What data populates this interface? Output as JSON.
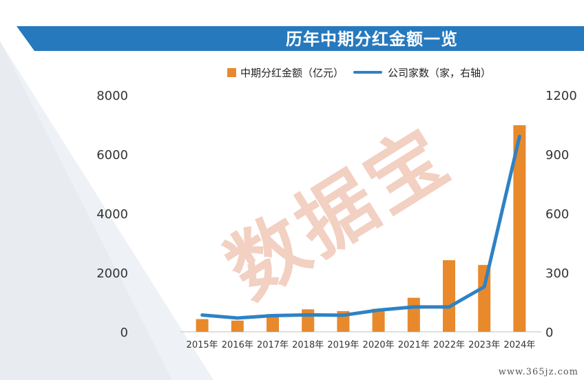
{
  "header": {
    "title": "历年中期分红金额一览"
  },
  "watermark": {
    "text": "数据宝"
  },
  "site": {
    "text": "www.365jz.com"
  },
  "colors": {
    "bar": "#E8892C",
    "line": "#2E82C4",
    "banner": "#2779BD"
  },
  "chart_data": {
    "type": "bar",
    "title": "历年中期分红金额一览",
    "categories": [
      "2015年",
      "2016年",
      "2017年",
      "2018年",
      "2019年",
      "2020年",
      "2021年",
      "2022年",
      "2023年",
      "2024年"
    ],
    "series": [
      {
        "name": "中期分红金额（亿元）",
        "type": "bar",
        "axis": "left",
        "values": [
          430,
          380,
          600,
          760,
          700,
          780,
          1150,
          2420,
          2260,
          6980
        ]
      },
      {
        "name": "公司家数（家，右轴）",
        "type": "line",
        "axis": "right",
        "values": [
          85,
          70,
          82,
          86,
          84,
          110,
          126,
          126,
          228,
          990
        ]
      }
    ],
    "y_left": {
      "min": 0,
      "max": 8000,
      "ticks": [
        "0",
        "2000",
        "4000",
        "6000",
        "8000"
      ]
    },
    "y_right": {
      "min": 0,
      "max": 1200,
      "ticks": [
        "0",
        "300",
        "600",
        "900",
        "1200"
      ]
    },
    "legend": {
      "position": "top",
      "items": [
        "中期分红金额（亿元）",
        "公司家数（家，右轴）"
      ]
    },
    "grid": false
  }
}
